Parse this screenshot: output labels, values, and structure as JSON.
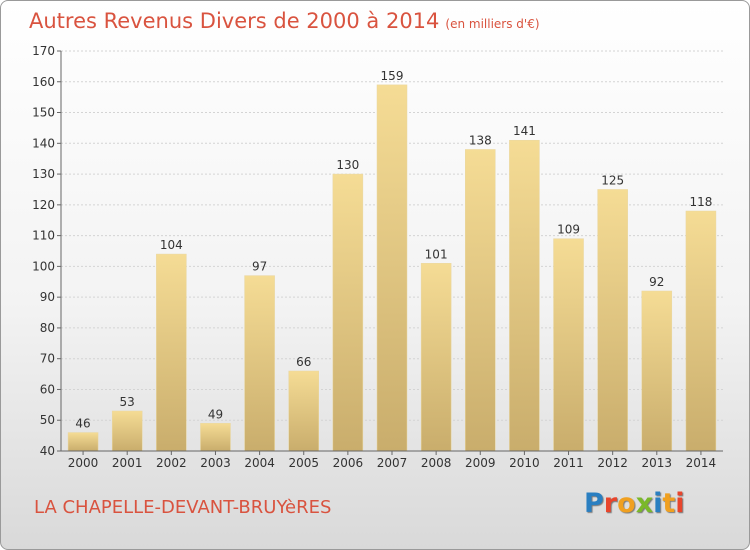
{
  "title": "Autres Revenus Divers de 2000 à 2014",
  "title_unit": "(en milliers d'€)",
  "commune": "LA CHAPELLE-DEVANT-BRUYèRES",
  "logo_text": "Proxiti",
  "logo_colors": [
    "#2a7fc1",
    "#e8452c",
    "#f0a020",
    "#7ab82a",
    "#2a7fc1",
    "#f0a020",
    "#e8452c"
  ],
  "colors": {
    "title": "#d9533f",
    "bar_light": "#f5dc95",
    "bar_dark": "#c9ad6c"
  },
  "chart_data": {
    "type": "bar",
    "title": "Autres Revenus Divers de 2000 à 2014",
    "categories": [
      "2000",
      "2001",
      "2002",
      "2003",
      "2004",
      "2005",
      "2006",
      "2007",
      "2008",
      "2009",
      "2010",
      "2011",
      "2012",
      "2013",
      "2014"
    ],
    "values": [
      46,
      53,
      104,
      49,
      97,
      66,
      130,
      159,
      101,
      138,
      141,
      109,
      125,
      92,
      118
    ],
    "ylim": [
      40,
      170
    ],
    "yticks": [
      40,
      50,
      60,
      70,
      80,
      90,
      100,
      110,
      120,
      130,
      140,
      150,
      160,
      170
    ],
    "grid": true,
    "data_labels": true
  }
}
